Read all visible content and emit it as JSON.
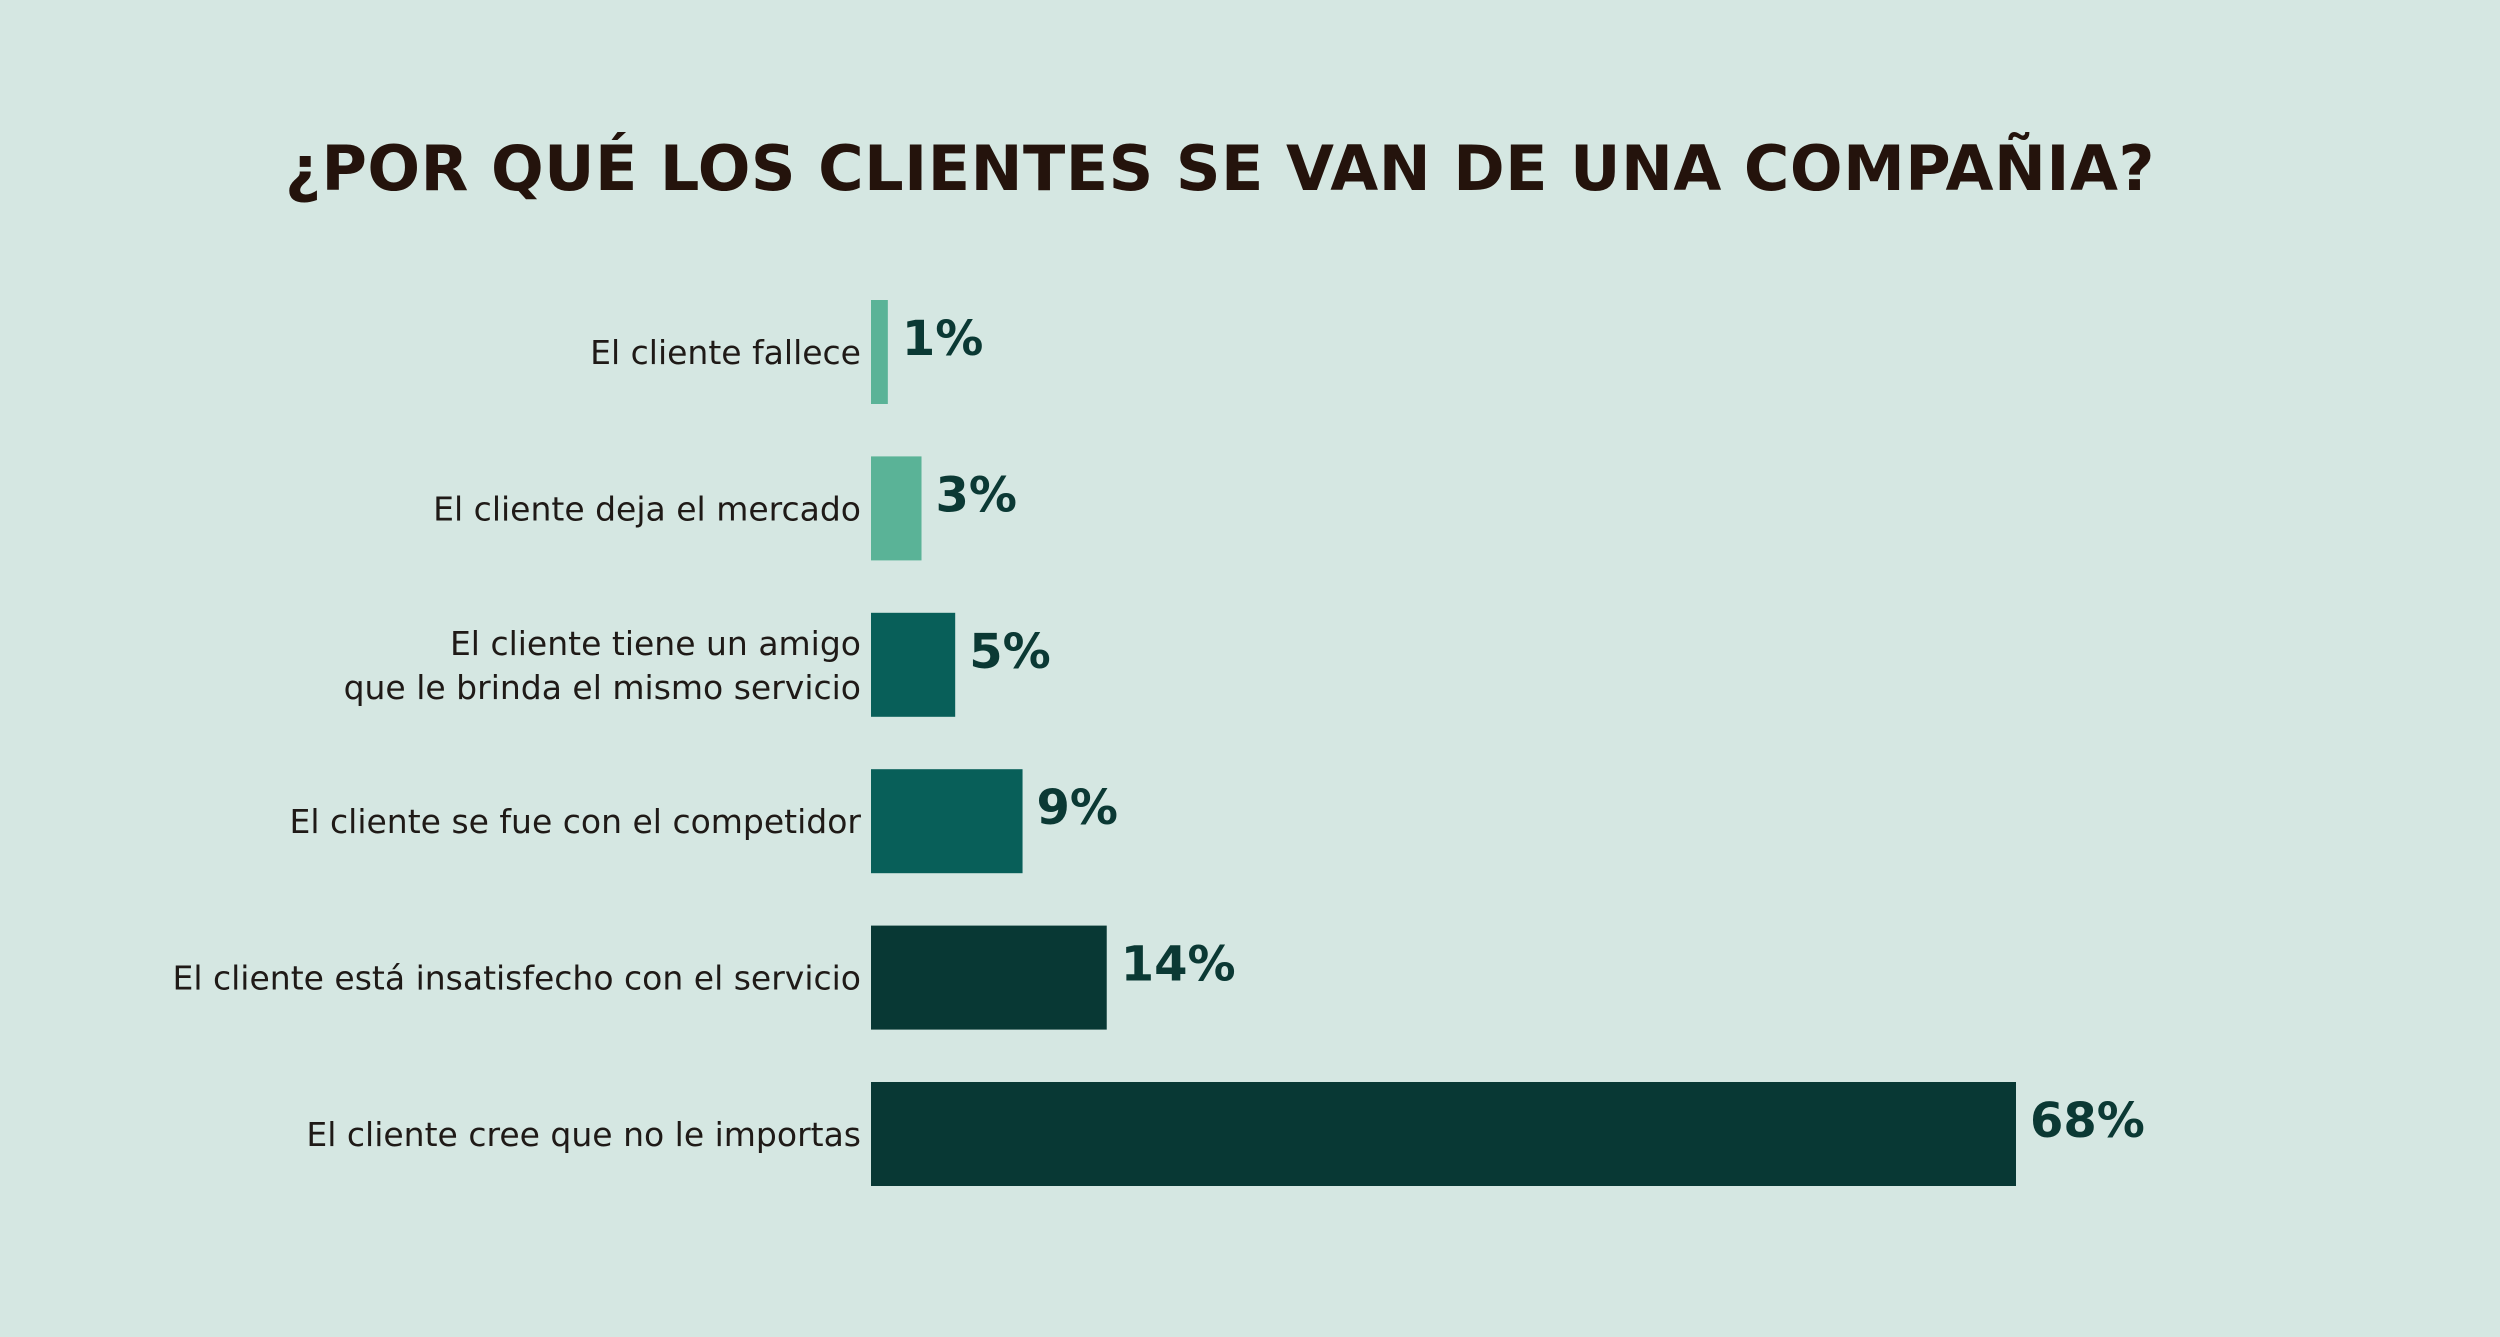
{
  "chart_data": {
    "type": "bar",
    "orientation": "horizontal",
    "title": "¿POR QUÉ LOS CLIENTES SE VAN DE UNA COMPAÑIA?",
    "categories": [
      "El cliente fallece",
      "El cliente deja el mercado",
      "El cliente tiene un amigo que le brinda el mismo servicio",
      "El cliente se fue con el competidor",
      "El cliente está insatisfecho con el servicio",
      "El cliente cree que no le importas"
    ],
    "category_lines": [
      [
        "El cliente fallece"
      ],
      [
        "El cliente deja el mercado"
      ],
      [
        "El cliente tiene un amigo",
        "que le brinda el mismo servicio"
      ],
      [
        "El cliente se fue con el competidor"
      ],
      [
        "El cliente está insatisfecho con el servicio"
      ],
      [
        "El cliente cree que no le importas"
      ]
    ],
    "values": [
      1,
      3,
      5,
      9,
      14,
      68
    ],
    "value_labels": [
      "1%",
      "3%",
      "5%",
      "9%",
      "14%",
      "68%"
    ],
    "unit": "%",
    "xlim": [
      0,
      68
    ],
    "grid": false,
    "legend": "none",
    "colors": [
      "#5ab397",
      "#5ab397",
      "#085f59",
      "#085f59",
      "#083834",
      "#083834"
    ]
  },
  "colors": {
    "background": "#d5e7e2",
    "title": "#24130c",
    "label": "#1f1a17",
    "value": "#0b3934"
  }
}
